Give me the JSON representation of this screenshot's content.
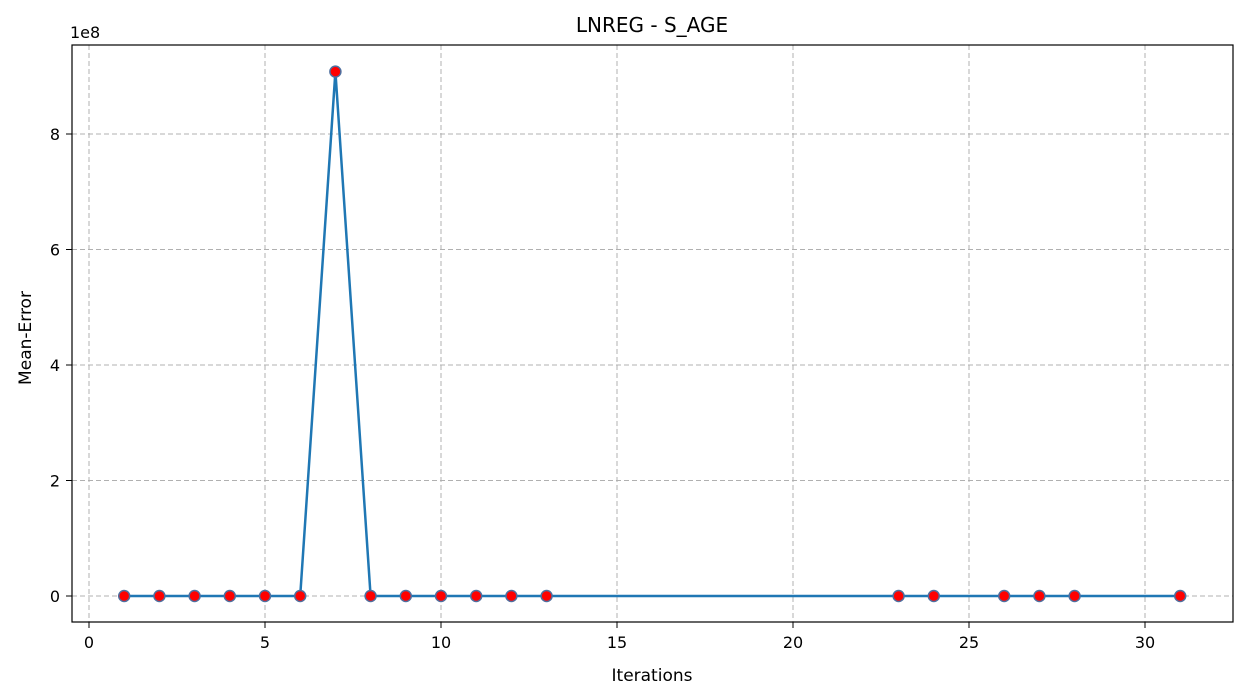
{
  "chart_data": {
    "type": "line",
    "title": "LNREG - S_AGE",
    "xlabel": "Iterations",
    "ylabel": "Mean-Error",
    "y_offset_label": "1e8",
    "xlim": [
      -0.5,
      32.5
    ],
    "ylim": [
      -0.45,
      9.55
    ],
    "y_scale_multiplier": 100000000,
    "xticks": [
      0,
      5,
      10,
      15,
      20,
      25,
      30
    ],
    "yticks": [
      0,
      2,
      4,
      6,
      8
    ],
    "grid": true,
    "line_color": "#1f77b4",
    "marker_face_color": "#ff0000",
    "marker_edge_color": "#4f6f9f",
    "series": [
      {
        "x": [
          1,
          2,
          3,
          4,
          5,
          6,
          7,
          8,
          9,
          10,
          11,
          12,
          13,
          23,
          24,
          26,
          27,
          28,
          31
        ],
        "values": [
          0,
          0,
          0,
          0,
          0,
          0,
          9.08,
          0,
          0,
          0,
          0,
          0,
          0,
          0,
          0,
          0,
          0,
          0,
          0
        ]
      }
    ]
  }
}
